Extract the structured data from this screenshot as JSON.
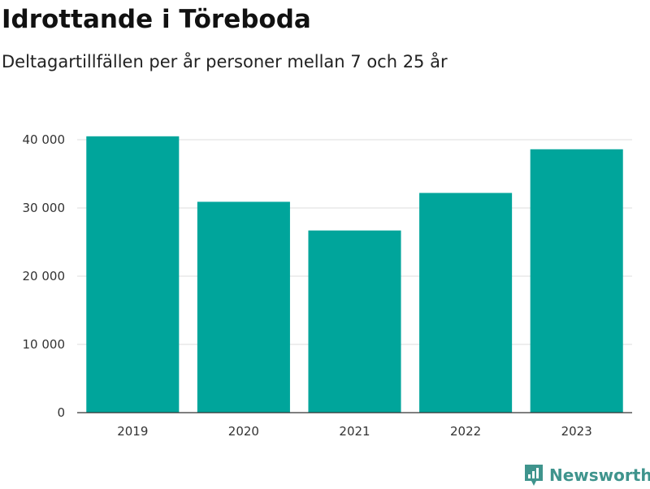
{
  "header": {
    "title": "Idrottande i Töreboda",
    "subtitle": "Deltagartillfällen per år personer mellan 7 och 25 år"
  },
  "brand": {
    "name": "Newsworthy",
    "icon": "newsworthy-logo-icon",
    "color": "#3f948d"
  },
  "colors": {
    "bar": "#00a59b",
    "grid": "#dddddd",
    "axis": "#333333"
  },
  "chart_data": {
    "type": "bar",
    "title": "Idrottande i Töreboda",
    "subtitle": "Deltagartillfällen per år personer mellan 7 och 25 år",
    "xlabel": "",
    "ylabel": "",
    "categories": [
      "2019",
      "2020",
      "2021",
      "2022",
      "2023"
    ],
    "values": [
      40500,
      30900,
      26700,
      32200,
      38600
    ],
    "ylim": [
      0,
      40000
    ],
    "yticks": [
      0,
      10000,
      20000,
      30000,
      40000
    ],
    "ytick_labels": [
      "0",
      "10 000",
      "20 000",
      "30 000",
      "40 000"
    ],
    "grid": true,
    "legend": "none"
  }
}
